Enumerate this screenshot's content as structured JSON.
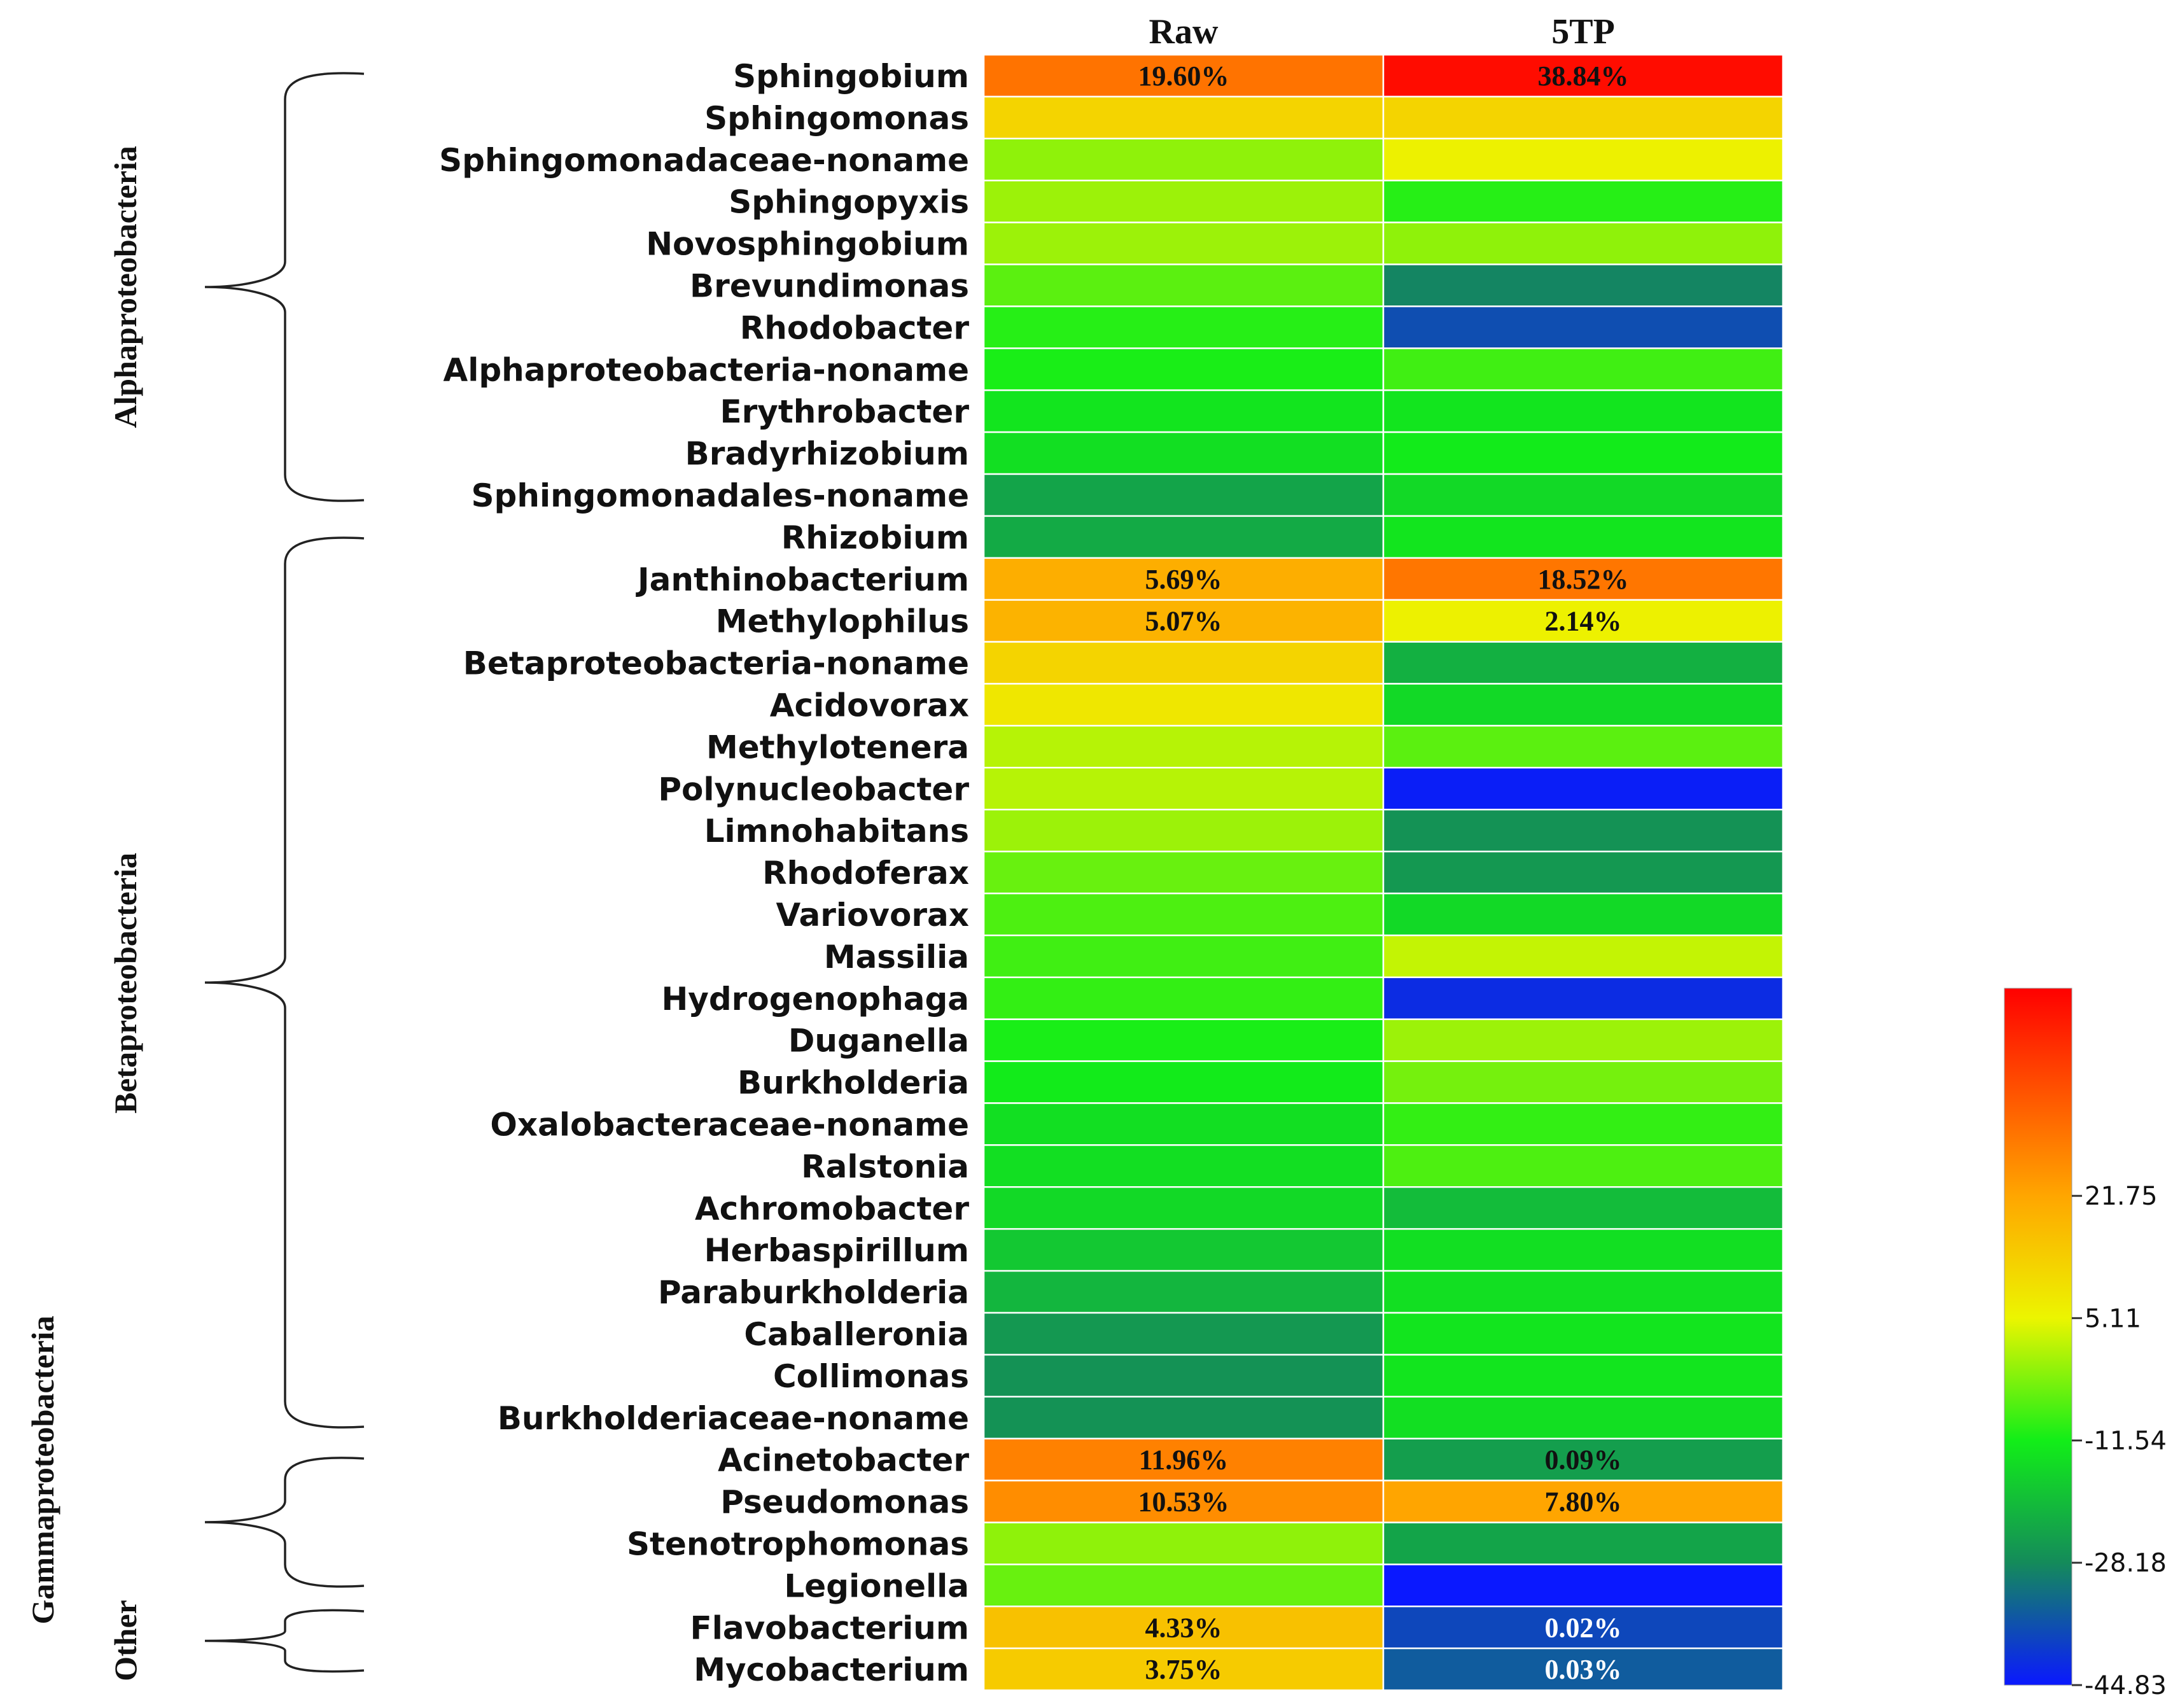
{
  "chart_data": {
    "type": "heatmap",
    "columns": [
      "Raw",
      "5TP"
    ],
    "rows": [
      {
        "name": "Sphingobium",
        "raw": 30.4,
        "tp5": 48,
        "raw_label": "19.60%",
        "tp5_label": "38.84%"
      },
      {
        "name": "Sphingomonas",
        "raw": 12,
        "tp5": 12
      },
      {
        "name": "Sphingomonadaceae-noname",
        "raw": -2,
        "tp5": 6
      },
      {
        "name": "Sphingopyxis",
        "raw": -1,
        "tp5": -10
      },
      {
        "name": "Novosphingobium",
        "raw": -1,
        "tp5": -2
      },
      {
        "name": "Brevundimonas",
        "raw": -6,
        "tp5": -29
      },
      {
        "name": "Rhodobacter",
        "raw": -10,
        "tp5": -37
      },
      {
        "name": "Alphaproteobacteria-noname",
        "raw": -11,
        "tp5": -8
      },
      {
        "name": "Erythrobacter",
        "raw": -13,
        "tp5": -13
      },
      {
        "name": "Bradyrhizobium",
        "raw": -14,
        "tp5": -12
      },
      {
        "name": "Sphingomonadales-noname",
        "raw": -24,
        "tp5": -15
      },
      {
        "name": "Rhizobium",
        "raw": -23,
        "tp5": -13
      },
      {
        "name": "Janthinobacterium",
        "raw": 20,
        "tp5": 30,
        "raw_label": "5.69%",
        "tp5_label": "18.52%"
      },
      {
        "name": "Methylophilus",
        "raw": 19,
        "tp5": 6,
        "raw_label": "5.07%",
        "tp5_label": "2.14%"
      },
      {
        "name": "Betaproteobacteria-noname",
        "raw": 12,
        "tp5": -22
      },
      {
        "name": "Acidovorax",
        "raw": 8,
        "tp5": -15
      },
      {
        "name": "Methylotenera",
        "raw": 1,
        "tp5": -6
      },
      {
        "name": "Polynucleobacter",
        "raw": 1,
        "tp5": -44
      },
      {
        "name": "Limnohabitans",
        "raw": -1,
        "tp5": -27
      },
      {
        "name": "Rhodoferax",
        "raw": -5,
        "tp5": -26
      },
      {
        "name": "Variovorax",
        "raw": -7,
        "tp5": -15
      },
      {
        "name": "Massilia",
        "raw": -8,
        "tp5": 2
      },
      {
        "name": "Hydrogenophaga",
        "raw": -9,
        "tp5": -42
      },
      {
        "name": "Duganella",
        "raw": -11,
        "tp5": -1
      },
      {
        "name": "Burkholderia",
        "raw": -12,
        "tp5": -4
      },
      {
        "name": "Oxalobacteraceae-noname",
        "raw": -14,
        "tp5": -9
      },
      {
        "name": "Ralstonia",
        "raw": -14,
        "tp5": -7
      },
      {
        "name": "Achromobacter",
        "raw": -15,
        "tp5": -20
      },
      {
        "name": "Herbaspirillum",
        "raw": -18,
        "tp5": -14
      },
      {
        "name": "Paraburkholderia",
        "raw": -21,
        "tp5": -14
      },
      {
        "name": "Caballeronia",
        "raw": -26,
        "tp5": -13
      },
      {
        "name": "Collimonas",
        "raw": -27,
        "tp5": -13
      },
      {
        "name": "Burkholderiaceae-noname",
        "raw": -27,
        "tp5": -14
      },
      {
        "name": "Acinetobacter",
        "raw": 28,
        "tp5": -25,
        "raw_label": "11.96%",
        "tp5_label": "0.09%"
      },
      {
        "name": "Pseudomonas",
        "raw": 26,
        "tp5": 22,
        "raw_label": "10.53%",
        "tp5_label": "7.80%"
      },
      {
        "name": "Stenotrophomonas",
        "raw": -2,
        "tp5": -24
      },
      {
        "name": "Legionella",
        "raw": -5,
        "tp5": -45
      },
      {
        "name": "Flavobacterium",
        "raw": 16,
        "tp5": -38,
        "raw_label": "4.33%",
        "tp5_label": "0.02%"
      },
      {
        "name": "Mycobacterium",
        "raw": 14,
        "tp5": -35,
        "raw_label": "3.75%",
        "tp5_label": "0.03%"
      }
    ],
    "groups": [
      {
        "name": "Alphaproteobacteria",
        "from": 0,
        "to": 10
      },
      {
        "name": "Betaproteobacteria",
        "from": 11,
        "to": 32
      },
      {
        "name": "Gammaproteobacteria",
        "from": 33,
        "to": 36
      },
      {
        "name": "Other",
        "from": 37,
        "to": 38
      }
    ],
    "colorbar": {
      "ticks": [
        "21.75",
        "5.11",
        "-11.54",
        "-28.18",
        "-44.83"
      ],
      "tick_values": [
        21.75,
        5.11,
        -11.54,
        -28.18,
        -44.83
      ],
      "range": [
        -44.83,
        50
      ],
      "colors": [
        "#0a18ff",
        "#148b5a",
        "#12ee18",
        "#ecf500",
        "#ffa600",
        "#ff0000"
      ],
      "color_stops": [
        -44.83,
        -28.18,
        -11.54,
        5.11,
        21.75,
        50
      ]
    }
  }
}
